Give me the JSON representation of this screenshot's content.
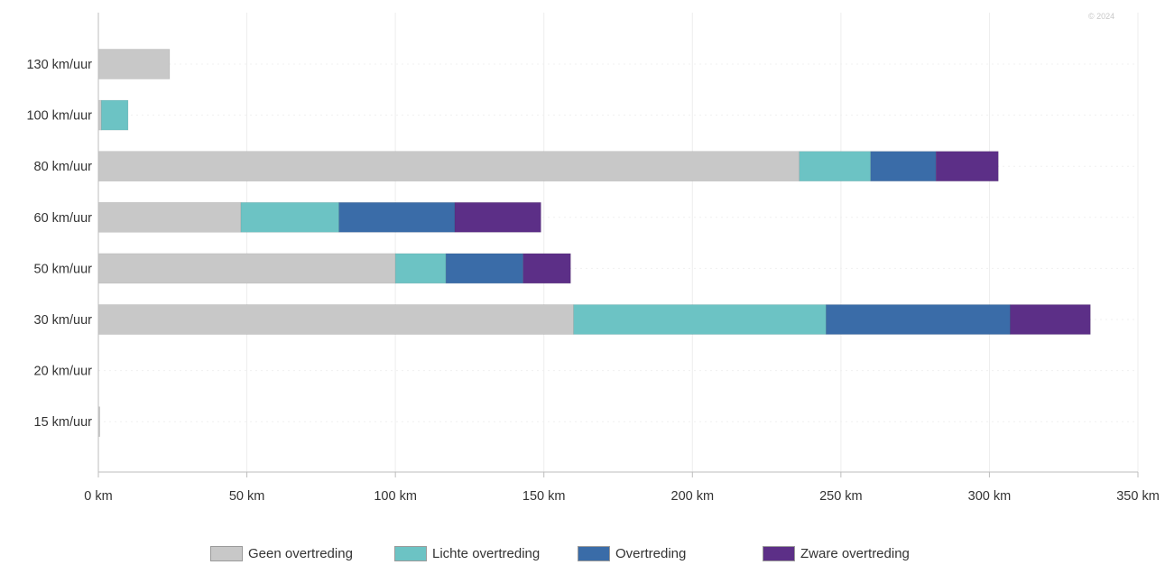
{
  "watermark": "© 2024",
  "chart_data": {
    "type": "bar",
    "orientation": "horizontal",
    "stacked": true,
    "categories": [
      "130 km/uur",
      "100 km/uur",
      "80 km/uur",
      "60 km/uur",
      "50 km/uur",
      "30 km/uur",
      "20 km/uur",
      "15 km/uur"
    ],
    "series": [
      {
        "name": "Geen overtreding",
        "color": "#c8c8c8",
        "values": [
          24,
          1,
          236,
          48,
          100,
          160,
          0,
          0.5
        ]
      },
      {
        "name": "Lichte overtreding",
        "color": "#6cc3c4",
        "values": [
          0,
          9,
          24,
          33,
          17,
          85,
          0,
          0
        ]
      },
      {
        "name": "Overtreding",
        "color": "#3a6ca8",
        "values": [
          0,
          0,
          22,
          39,
          26,
          62,
          0,
          0
        ]
      },
      {
        "name": "Zware overtreding",
        "color": "#5c2f87",
        "values": [
          0,
          0,
          21,
          29,
          16,
          27,
          0,
          0
        ]
      }
    ],
    "xlim": [
      0,
      350
    ],
    "xticks": [
      0,
      50,
      100,
      150,
      200,
      250,
      300,
      350
    ],
    "xtick_labels": [
      "0 km",
      "50 km",
      "100 km",
      "150 km",
      "200 km",
      "250 km",
      "300 km",
      "350 km"
    ],
    "xlabel": "",
    "ylabel": "",
    "title": "",
    "grid": true,
    "legend_position": "bottom"
  }
}
